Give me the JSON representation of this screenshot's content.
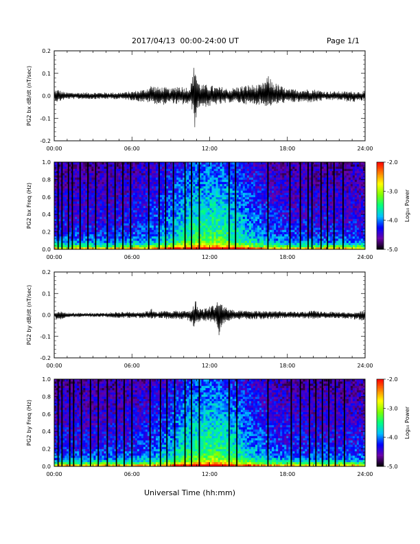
{
  "header": {
    "title": "2017/04/13  00:00-24:00 UT",
    "page": "Page 1/1"
  },
  "x_axis_title": "Universal Time (hh:mm)",
  "colorbar": {
    "label": "Log₁₀ Power",
    "ticks": [
      "-2.0",
      "-3.0",
      "-4.0",
      "-5.0"
    ],
    "range": [
      -5.0,
      -2.0
    ],
    "colors": [
      "#000000",
      "#6a00a8",
      "#0000ff",
      "#00bfff",
      "#00ff80",
      "#80ff00",
      "#ffff00",
      "#ff8000",
      "#ff0000"
    ]
  },
  "chart_data": [
    {
      "type": "line",
      "ylabel": "PG2 bx dB/dt (nT/sec)",
      "xlim": [
        0,
        24
      ],
      "ylim": [
        -0.2,
        0.2
      ],
      "x_ticks": [
        "00:00",
        "06:00",
        "12:00",
        "18:00",
        "24:00"
      ],
      "y_ticks": [
        "0.2",
        "0.1",
        "0.0",
        "-0.1",
        "-0.2"
      ],
      "series": [
        {
          "x": [
            0,
            0.3,
            0.6,
            1,
            2,
            3,
            4,
            5,
            6,
            7,
            7.5,
            8,
            8.5,
            9,
            9.5,
            10,
            10.5,
            10.8,
            10.9,
            11,
            11.2,
            11.5,
            12,
            12.5,
            13,
            13.5,
            14,
            15,
            16,
            16.5,
            17,
            18,
            19,
            20,
            21,
            22,
            23,
            24
          ],
          "envelope_max": [
            0.02,
            0.03,
            0.02,
            0.015,
            0.015,
            0.015,
            0.015,
            0.015,
            0.02,
            0.03,
            0.05,
            0.04,
            0.04,
            0.03,
            0.05,
            0.04,
            0.04,
            0.14,
            0.18,
            0.09,
            0.06,
            0.05,
            0.05,
            0.04,
            0.04,
            0.03,
            0.04,
            0.05,
            0.05,
            0.09,
            0.06,
            0.03,
            0.03,
            0.03,
            0.02,
            0.02,
            0.02,
            0.02
          ],
          "envelope_min": [
            -0.02,
            -0.03,
            -0.02,
            -0.015,
            -0.015,
            -0.015,
            -0.015,
            -0.015,
            -0.02,
            -0.03,
            -0.03,
            -0.04,
            -0.04,
            -0.03,
            -0.04,
            -0.04,
            -0.04,
            -0.09,
            -0.19,
            -0.08,
            -0.05,
            -0.05,
            -0.05,
            -0.04,
            -0.04,
            -0.03,
            -0.03,
            -0.04,
            -0.04,
            -0.05,
            -0.04,
            -0.03,
            -0.03,
            -0.03,
            -0.02,
            -0.02,
            -0.03,
            -0.02
          ]
        }
      ]
    },
    {
      "type": "heatmap",
      "ylabel": "PG2 bx Freq (Hz)",
      "xlim": [
        0,
        24
      ],
      "ylim": [
        0,
        1.0
      ],
      "x_ticks": [
        "00:00",
        "06:00",
        "12:00",
        "18:00",
        "24:00"
      ],
      "y_ticks": [
        "1.0",
        "0.8",
        "0.6",
        "0.4",
        "0.2",
        "0.0"
      ],
      "z_range": [
        -5.0,
        -2.0
      ],
      "dark_stripes_hours": [
        0.3,
        0.6,
        1.1,
        1.4,
        2.0,
        2.6,
        3.2,
        4.1,
        4.7,
        5.3,
        5.9,
        7.3,
        8.1,
        8.6,
        9.2,
        10.1,
        10.6,
        11.2,
        13.5,
        14.0,
        16.5,
        18.2,
        19.0,
        19.6,
        19.9,
        20.6,
        21.1,
        21.6,
        22.3
      ]
    },
    {
      "type": "line",
      "ylabel": "PG2 by dB/dt (nT/sec)",
      "xlim": [
        0,
        24
      ],
      "ylim": [
        -0.2,
        0.2
      ],
      "x_ticks": [
        "00:00",
        "06:00",
        "12:00",
        "18:00",
        "24:00"
      ],
      "y_ticks": [
        "0.2",
        "0.1",
        "0.0",
        "-0.1",
        "-0.2"
      ],
      "series": [
        {
          "x": [
            0,
            0.3,
            0.6,
            1,
            2,
            3,
            4,
            5,
            6,
            7,
            7.5,
            8,
            8.5,
            9,
            9.5,
            10,
            10.5,
            10.8,
            10.9,
            11,
            11.5,
            12,
            12.5,
            12.8,
            13,
            13.5,
            14,
            15,
            16,
            16.5,
            17,
            18,
            19,
            20,
            21,
            22,
            23,
            24
          ],
          "envelope_max": [
            0.01,
            0.02,
            0.015,
            0.01,
            0.01,
            0.01,
            0.01,
            0.015,
            0.015,
            0.015,
            0.03,
            0.015,
            0.02,
            0.02,
            0.02,
            0.02,
            0.02,
            0.05,
            0.09,
            0.04,
            0.03,
            0.04,
            0.06,
            0.07,
            0.05,
            0.03,
            0.02,
            0.02,
            0.02,
            0.02,
            0.02,
            0.015,
            0.015,
            0.02,
            0.015,
            0.015,
            0.01,
            0.02
          ],
          "envelope_min": [
            -0.01,
            -0.03,
            -0.02,
            -0.01,
            -0.01,
            -0.01,
            -0.01,
            -0.015,
            -0.015,
            -0.015,
            -0.02,
            -0.015,
            -0.02,
            -0.02,
            -0.02,
            -0.02,
            -0.03,
            -0.06,
            -0.04,
            -0.04,
            -0.03,
            -0.03,
            -0.04,
            -0.12,
            -0.05,
            -0.03,
            -0.02,
            -0.02,
            -0.02,
            -0.02,
            -0.02,
            -0.015,
            -0.015,
            -0.02,
            -0.015,
            -0.015,
            -0.02,
            -0.03
          ]
        }
      ]
    },
    {
      "type": "heatmap",
      "ylabel": "PG2 by Freq (Hz)",
      "xlim": [
        0,
        24
      ],
      "ylim": [
        0,
        1.0
      ],
      "x_ticks": [
        "00:00",
        "06:00",
        "12:00",
        "18:00",
        "24:00"
      ],
      "y_ticks": [
        "1.0",
        "0.8",
        "0.6",
        "0.4",
        "0.2",
        "0.0"
      ],
      "z_range": [
        -5.0,
        -2.0
      ],
      "dark_stripes_hours": [
        0.3,
        0.6,
        1.2,
        1.5,
        2.1,
        2.8,
        3.4,
        4.1,
        4.8,
        5.4,
        6.0,
        7.4,
        8.2,
        8.7,
        9.3,
        10.1,
        10.6,
        11.2,
        13.5,
        14.1,
        16.5,
        18.3,
        19.0,
        19.7,
        20.2,
        20.7,
        21.2,
        21.7,
        22.4
      ]
    }
  ]
}
